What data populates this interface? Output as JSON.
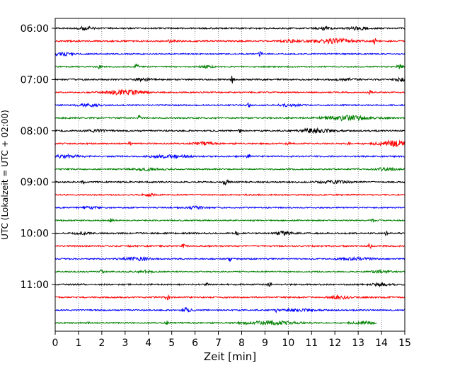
{
  "chart_data": {
    "type": "line",
    "subtype": "helicorder",
    "xlabel": "Zeit  [min]",
    "ylabel": "UTC (Lokalzeit = UTC + 02:00)",
    "xlim": [
      0,
      15
    ],
    "x_ticks": [
      "0",
      "1",
      "2",
      "3",
      "4",
      "5",
      "6",
      "7",
      "8",
      "9",
      "10",
      "11",
      "12",
      "13",
      "14",
      "15"
    ],
    "y_ticks": [
      {
        "label": "06:00",
        "trace": 0
      },
      {
        "label": "07:00",
        "trace": 4
      },
      {
        "label": "08:00",
        "trace": 8
      },
      {
        "label": "09:00",
        "trace": 12
      },
      {
        "label": "10:00",
        "trace": 16
      },
      {
        "label": "11:00",
        "trace": 20
      }
    ],
    "trace_colors": [
      "#000000",
      "#ff0000",
      "#0000ff",
      "#008000"
    ],
    "traces": [
      {
        "start": "06:00",
        "noise": 2.0,
        "events": [
          [
            1.3,
            0.25,
            4
          ],
          [
            11.5,
            0.2,
            4
          ],
          [
            13.0,
            0.3,
            4
          ]
        ]
      },
      {
        "start": "06:15",
        "noise": 2.0,
        "events": [
          [
            5.0,
            0.15,
            4
          ],
          [
            10.2,
            0.3,
            3
          ],
          [
            12.0,
            0.6,
            6
          ],
          [
            13.7,
            0.05,
            8
          ]
        ]
      },
      {
        "start": "06:30",
        "noise": 1.8,
        "events": [
          [
            0.3,
            0.3,
            4
          ],
          [
            8.8,
            0.05,
            6
          ]
        ]
      },
      {
        "start": "06:45",
        "noise": 1.8,
        "events": [
          [
            1.9,
            0.05,
            6
          ],
          [
            3.5,
            0.05,
            6
          ],
          [
            6.5,
            0.2,
            3
          ],
          [
            14.8,
            0.1,
            6
          ]
        ]
      },
      {
        "start": "07:00",
        "noise": 2.0,
        "events": [
          [
            3.8,
            0.3,
            3
          ],
          [
            7.6,
            0.05,
            10
          ],
          [
            12.5,
            0.3,
            3
          ],
          [
            14.9,
            0.2,
            5
          ]
        ]
      },
      {
        "start": "07:15",
        "noise": 1.8,
        "events": [
          [
            3.0,
            0.6,
            6
          ],
          [
            13.5,
            0.05,
            5
          ]
        ]
      },
      {
        "start": "07:30",
        "noise": 1.8,
        "events": [
          [
            1.5,
            0.4,
            3
          ],
          [
            8.3,
            0.05,
            8
          ],
          [
            10.0,
            0.3,
            3
          ]
        ]
      },
      {
        "start": "07:45",
        "noise": 2.0,
        "events": [
          [
            3.6,
            0.05,
            6
          ],
          [
            12.5,
            0.7,
            6
          ]
        ]
      },
      {
        "start": "08:00",
        "noise": 2.0,
        "events": [
          [
            1.8,
            0.3,
            3
          ],
          [
            7.9,
            0.05,
            6
          ],
          [
            11.2,
            0.5,
            6
          ]
        ]
      },
      {
        "start": "08:15",
        "noise": 2.0,
        "events": [
          [
            3.2,
            0.05,
            5
          ],
          [
            6.4,
            0.3,
            4
          ],
          [
            10.0,
            0.05,
            5
          ],
          [
            12.6,
            0.05,
            5
          ],
          [
            14.5,
            0.5,
            7
          ]
        ]
      },
      {
        "start": "08:30",
        "noise": 2.0,
        "events": [
          [
            0.4,
            0.4,
            4
          ],
          [
            4.9,
            0.5,
            4
          ],
          [
            8.3,
            0.05,
            7
          ]
        ]
      },
      {
        "start": "08:45",
        "noise": 1.8,
        "events": [
          [
            4.0,
            0.4,
            3
          ],
          [
            14.2,
            0.4,
            3
          ]
        ]
      },
      {
        "start": "09:00",
        "noise": 2.0,
        "events": [
          [
            1.2,
            0.05,
            4
          ],
          [
            7.3,
            0.1,
            7
          ],
          [
            12.0,
            0.5,
            3
          ]
        ]
      },
      {
        "start": "09:15",
        "noise": 1.8,
        "events": [
          [
            4.0,
            0.2,
            3
          ]
        ]
      },
      {
        "start": "09:30",
        "noise": 1.8,
        "events": [
          [
            1.5,
            0.3,
            3
          ],
          [
            6.0,
            0.3,
            3
          ]
        ]
      },
      {
        "start": "09:45",
        "noise": 1.8,
        "events": [
          [
            2.4,
            0.05,
            8
          ],
          [
            13.6,
            0.05,
            5
          ]
        ]
      },
      {
        "start": "10:00",
        "noise": 2.0,
        "events": [
          [
            1.1,
            0.2,
            3
          ],
          [
            7.8,
            0.05,
            6
          ],
          [
            9.8,
            0.3,
            4
          ],
          [
            14.2,
            0.05,
            5
          ]
        ]
      },
      {
        "start": "10:15",
        "noise": 2.0,
        "events": [
          [
            3.2,
            0.05,
            5
          ],
          [
            5.5,
            0.05,
            4
          ],
          [
            13.5,
            0.05,
            6
          ]
        ]
      },
      {
        "start": "10:30",
        "noise": 1.8,
        "events": [
          [
            3.5,
            0.4,
            4
          ],
          [
            7.5,
            0.05,
            6
          ],
          [
            13.0,
            0.5,
            3
          ]
        ]
      },
      {
        "start": "10:45",
        "noise": 1.8,
        "events": [
          [
            2.0,
            0.05,
            5
          ],
          [
            3.8,
            0.3,
            3
          ],
          [
            14.0,
            0.3,
            4
          ]
        ]
      },
      {
        "start": "11:00",
        "noise": 2.0,
        "events": [
          [
            6.5,
            0.05,
            4
          ],
          [
            9.2,
            0.05,
            5
          ],
          [
            14.0,
            0.3,
            3
          ]
        ]
      },
      {
        "start": "11:15",
        "noise": 2.0,
        "events": [
          [
            4.8,
            0.05,
            8
          ],
          [
            12.2,
            0.3,
            4
          ]
        ]
      },
      {
        "start": "11:30",
        "noise": 1.8,
        "events": [
          [
            5.6,
            0.15,
            6
          ],
          [
            9.5,
            0.05,
            6
          ],
          [
            10.5,
            0.5,
            3
          ]
        ]
      },
      {
        "start": "11:45",
        "noise": 1.8,
        "events": [
          [
            1.4,
            0.05,
            4
          ],
          [
            4.8,
            0.05,
            5
          ],
          [
            9.3,
            0.8,
            5
          ],
          [
            13.2,
            0.3,
            4
          ]
        ]
      }
    ],
    "end_minute_of_last_trace": 13.8,
    "grid": "vertical-dotted"
  }
}
